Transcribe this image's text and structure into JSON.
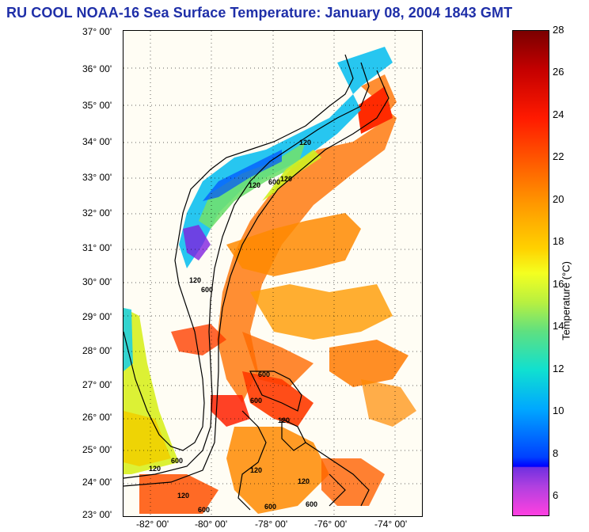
{
  "title": "RU COOL  NOAA-16  Sea Surface Temperature:  January 08, 2004 1843 GMT",
  "map": {
    "lat_labels": [
      "37° 00'",
      "36° 00'",
      "35° 00'",
      "34° 00'",
      "33° 00'",
      "32° 00'",
      "31° 00'",
      "30° 00'",
      "29° 00'",
      "28° 00'",
      "27° 00'",
      "26° 00'",
      "25° 00'",
      "24° 00'",
      "23° 00'"
    ],
    "lon_labels": [
      "-82° 00'",
      "-80° 00'",
      "-78° 00'",
      "-76° 00'",
      "-74° 00'"
    ],
    "contour_labels": [
      "120",
      "120",
      "600",
      "120",
      "120",
      "600",
      "600",
      "120",
      "600",
      "120",
      "600",
      "120",
      "600",
      "120",
      "120",
      "600",
      "600"
    ]
  },
  "colorbar": {
    "title": "Temperature (°C)",
    "ticks": [
      "28",
      "26",
      "24",
      "22",
      "20",
      "18",
      "16",
      "14",
      "12",
      "10",
      "8",
      "6"
    ],
    "colors": {
      "warm": "#ff2a00",
      "orange": "#ff8a00",
      "yellow": "#f0f000",
      "cyan": "#10d8f0",
      "blue": "#0040ff",
      "purple": "#8020e0",
      "magenta": "#ff40e0"
    }
  }
}
